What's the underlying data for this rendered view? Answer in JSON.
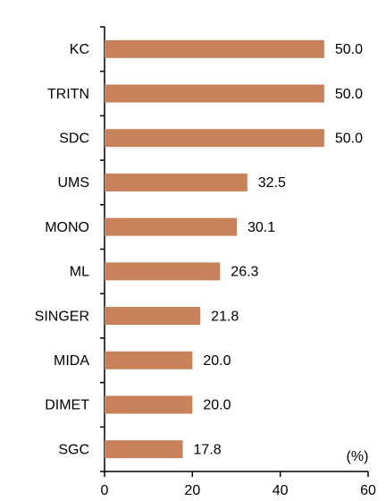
{
  "chart_data": {
    "type": "barh",
    "x_label": "(%)",
    "categories": [
      "KC",
      "TRITN",
      "SDC",
      "UMS",
      "MONO",
      "ML",
      "SINGER",
      "MIDA",
      "DIMET",
      "SGC"
    ],
    "values": [
      50,
      50,
      50,
      32.5,
      30.1,
      26.3,
      21.8,
      20,
      20,
      17.8
    ],
    "value_labels": [
      "50.0",
      "50.0",
      "50.0",
      "32.5",
      "30.1",
      "26.3",
      "21.8",
      "20.0",
      "20.0",
      "17.8"
    ],
    "color": "#c8825a",
    "xlim": [
      0,
      60
    ],
    "xticks": [
      0,
      20,
      40,
      60
    ],
    "grid": false
  }
}
